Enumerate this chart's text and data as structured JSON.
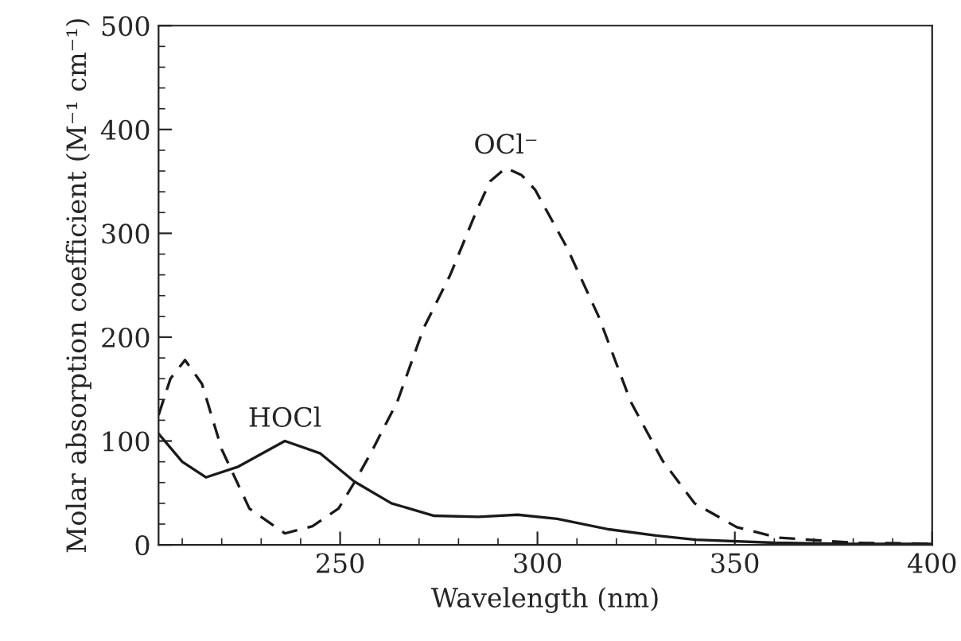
{
  "chart_data": {
    "type": "line",
    "xlabel": "Wavelength (nm)",
    "ylabel": "Molar absorption coefficient (M⁻¹ cm⁻¹)",
    "xlim": [
      204,
      400
    ],
    "xticks": [
      250,
      300,
      350,
      400
    ],
    "ylim": [
      0,
      500
    ],
    "yticks": [
      0,
      100,
      200,
      300,
      400,
      500
    ],
    "grid": false,
    "legend": false,
    "marker": "none",
    "series": [
      {
        "color": "#1a1a1a",
        "line_style": "solid",
        "x": [
          204,
          210,
          216,
          224,
          236,
          245,
          253.6,
          263,
          273.8,
          285,
          295,
          305,
          318,
          330,
          340,
          360,
          380,
          400
        ],
        "values": [
          107,
          80,
          65,
          75,
          100,
          88,
          61,
          40,
          28,
          27,
          29,
          25,
          15,
          9,
          5,
          2,
          1,
          1
        ]
      },
      {
        "color": "#1a1a1a",
        "line_style": "dashed",
        "x": [
          204,
          207,
          210.7,
          215,
          220,
          227,
          236,
          243,
          249.6,
          253.6,
          258,
          264.5,
          271.2,
          277.9,
          284.6,
          288,
          292,
          296,
          299.4,
          307.5,
          315.6,
          323.6,
          331.7,
          339.8,
          350.5,
          361,
          380,
          400
        ],
        "values": [
          125,
          160,
          178,
          155,
          92,
          35,
          11,
          18,
          35,
          60,
          90,
          138,
          209,
          260,
          322,
          350,
          363,
          356,
          342,
          286,
          219,
          138,
          81,
          40,
          17,
          7,
          2,
          1
        ]
      }
    ],
    "annotations": [
      {
        "text": "HOCl",
        "x": 236,
        "y": 100
      },
      {
        "text": "OCl⁻",
        "x": 292,
        "y": 363
      }
    ]
  }
}
